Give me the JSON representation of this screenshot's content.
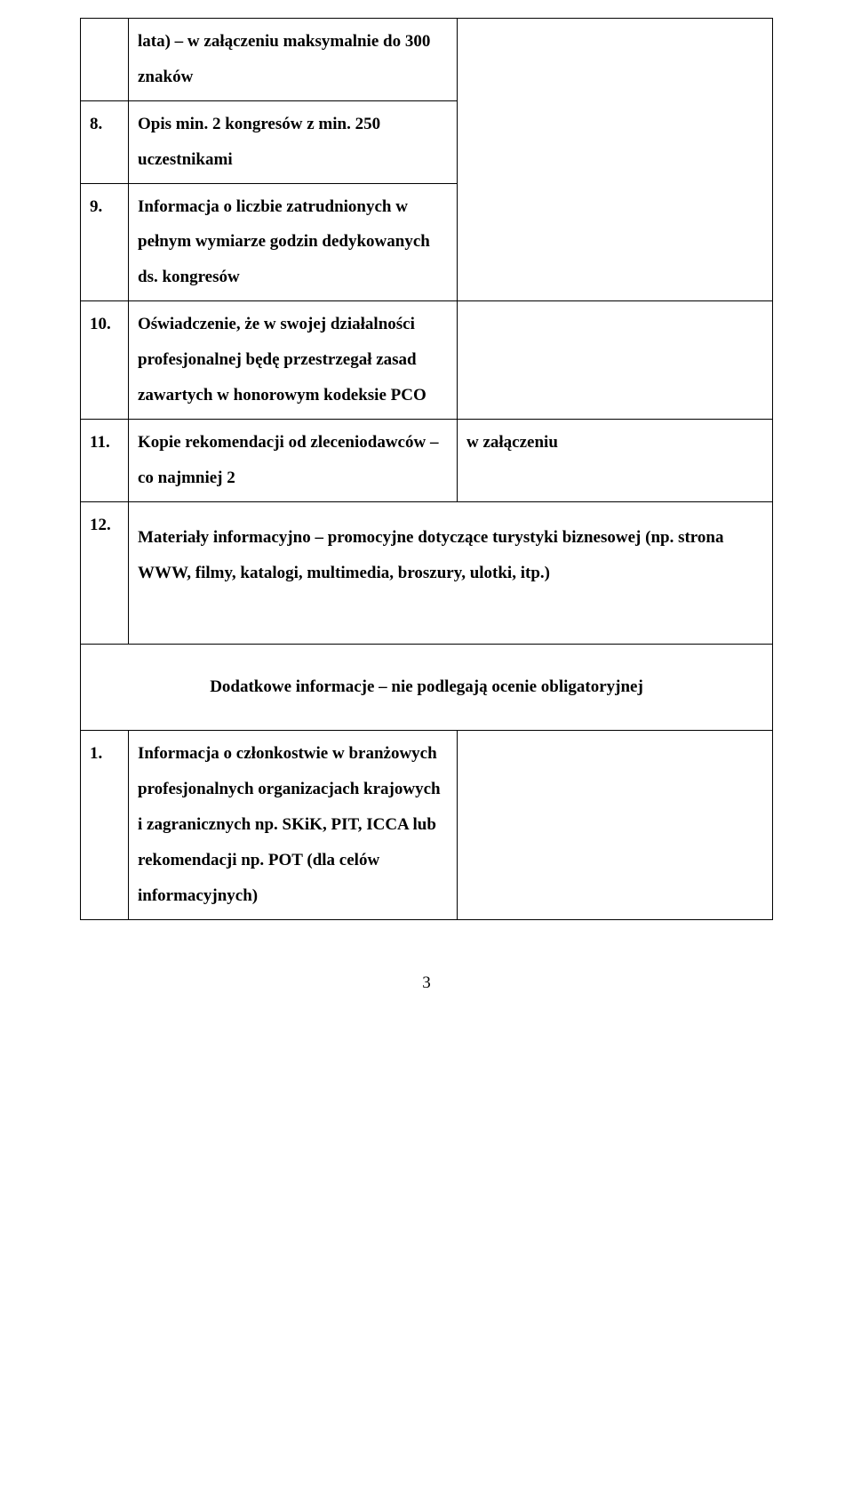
{
  "table1": {
    "rows": [
      {
        "num": "",
        "desc": "lata) – w załączeniu maksymalnie do 300 znaków",
        "val": "",
        "continuation": true
      },
      {
        "num": "8.",
        "desc": "Opis min. 2 kongresów z min. 250 uczestnikami",
        "val": "",
        "continuation": true
      },
      {
        "num": "9.",
        "desc": "Informacja o liczbie zatrudnionych w pełnym wymiarze godzin dedykowanych ds. kongresów",
        "val": "",
        "continuation": true
      },
      {
        "num": "10.",
        "desc": "Oświadczenie, że w swojej działalności profesjonalnej będę przestrzegał zasad zawartych w honorowym kodeksie PCO",
        "val": ""
      },
      {
        "num": "11.",
        "desc": "Kopie rekomendacji od zleceniodawców – co najmniej 2",
        "val": "w załączeniu"
      }
    ],
    "mergedRow": {
      "num": "12.",
      "desc": "Materiały informacyjno – promocyjne dotyczące turystyki biznesowej (np. strona WWW, filmy, katalogi, multimedia, broszury, ulotki, itp.)"
    }
  },
  "heading": "Dodatkowe informacje – nie podlegają ocenie obligatoryjnej",
  "table2": {
    "row": {
      "num": "1.",
      "desc": "Informacja o członkostwie w branżowych profesjonalnych organizacjach krajowych i zagranicznych np. SKiK, PIT, ICCA lub rekomendacji np. POT (dla celów informacyjnych)",
      "val": ""
    }
  },
  "pageNumber": "3"
}
